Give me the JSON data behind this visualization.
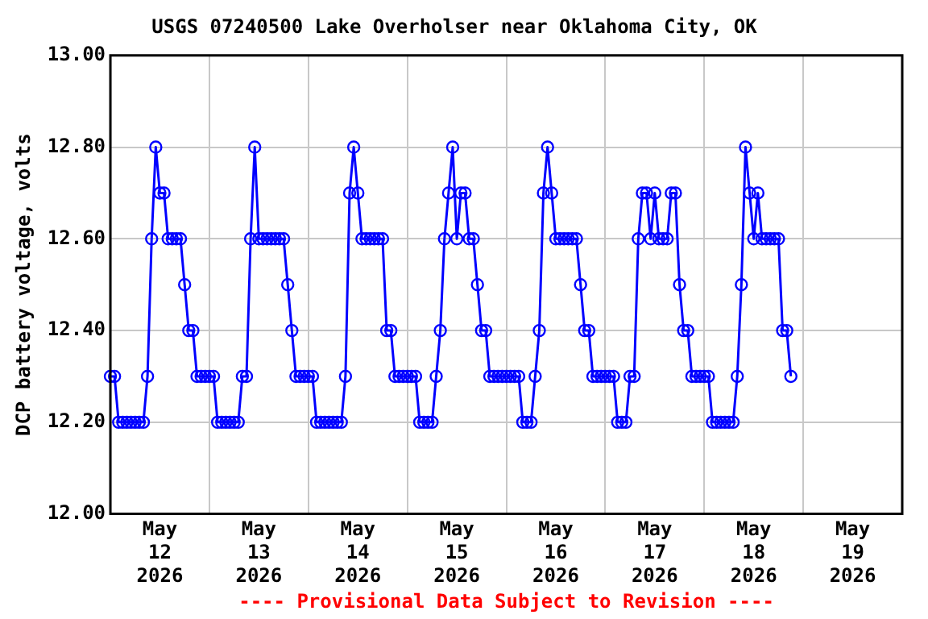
{
  "chart_data": {
    "type": "line",
    "title": "USGS 07240500 Lake Overholser near Oklahoma City, OK",
    "ylabel": "DCP battery voltage, volts",
    "annotations": [
      "---- Provisional Data Subject to Revision ----"
    ],
    "xlim": [
      "2026-05-12",
      "2026-05-20"
    ],
    "xticks": [
      {
        "value": "2026-05-12T12:00",
        "label": "May 12 2026"
      },
      {
        "value": "2026-05-13",
        "label": null
      },
      {
        "value": "2026-05-13T12:00",
        "label": "May 13 2026"
      },
      {
        "value": "2026-05-14",
        "label": null
      },
      {
        "value": "2026-05-14T12:00",
        "label": "May 14 2026"
      },
      {
        "value": "2026-05-15",
        "label": null
      },
      {
        "value": "2026-05-15T12:00",
        "label": "May 15 2026"
      },
      {
        "value": "2026-05-16",
        "label": null
      },
      {
        "value": "2026-05-16T12:00",
        "label": "May 16 2026"
      },
      {
        "value": "2026-05-17",
        "label": null
      },
      {
        "value": "2026-05-17T12:00",
        "label": "May 17 2026"
      },
      {
        "value": "2026-05-18",
        "label": null
      },
      {
        "value": "2026-05-18T12:00",
        "label": "May 18 2026"
      },
      {
        "value": "2026-05-19",
        "label": null
      },
      {
        "value": "2026-05-19T12:00",
        "label": "May 19 2026"
      }
    ],
    "ylim": [
      12,
      13
    ],
    "yticks": [
      {
        "value": 12,
        "label": "12.00"
      },
      {
        "value": 12.2,
        "label": "12.20"
      },
      {
        "value": 12.4,
        "label": "12.40"
      },
      {
        "value": 12.6,
        "label": "12.60"
      },
      {
        "value": 12.8,
        "label": "12.80"
      },
      {
        "value": 13,
        "label": "13.00"
      }
    ],
    "grid": true,
    "legend": false,
    "marker": "circle",
    "line_style": "solid",
    "series": [
      {
        "color": "#0000ff",
        "x": [
          "2026-05-12T00:00",
          "2026-05-12T01:00",
          "2026-05-12T02:00",
          "2026-05-12T03:00",
          "2026-05-12T04:00",
          "2026-05-12T05:00",
          "2026-05-12T06:00",
          "2026-05-12T07:00",
          "2026-05-12T08:00",
          "2026-05-12T09:00",
          "2026-05-12T10:00",
          "2026-05-12T11:00",
          "2026-05-12T12:00",
          "2026-05-12T13:00",
          "2026-05-12T14:00",
          "2026-05-12T15:00",
          "2026-05-12T16:00",
          "2026-05-12T17:00",
          "2026-05-12T18:00",
          "2026-05-12T19:00",
          "2026-05-12T20:00",
          "2026-05-12T21:00",
          "2026-05-12T22:00",
          "2026-05-12T23:00",
          "2026-05-13T00:00",
          "2026-05-13T01:00",
          "2026-05-13T02:00",
          "2026-05-13T03:00",
          "2026-05-13T04:00",
          "2026-05-13T05:00",
          "2026-05-13T06:00",
          "2026-05-13T07:00",
          "2026-05-13T08:00",
          "2026-05-13T09:00",
          "2026-05-13T10:00",
          "2026-05-13T11:00",
          "2026-05-13T12:00",
          "2026-05-13T13:00",
          "2026-05-13T14:00",
          "2026-05-13T15:00",
          "2026-05-13T16:00",
          "2026-05-13T17:00",
          "2026-05-13T18:00",
          "2026-05-13T19:00",
          "2026-05-13T20:00",
          "2026-05-13T21:00",
          "2026-05-13T22:00",
          "2026-05-13T23:00",
          "2026-05-14T00:00",
          "2026-05-14T01:00",
          "2026-05-14T02:00",
          "2026-05-14T03:00",
          "2026-05-14T04:00",
          "2026-05-14T05:00",
          "2026-05-14T06:00",
          "2026-05-14T07:00",
          "2026-05-14T08:00",
          "2026-05-14T09:00",
          "2026-05-14T10:00",
          "2026-05-14T11:00",
          "2026-05-14T12:00",
          "2026-05-14T13:00",
          "2026-05-14T14:00",
          "2026-05-14T15:00",
          "2026-05-14T16:00",
          "2026-05-14T17:00",
          "2026-05-14T18:00",
          "2026-05-14T19:00",
          "2026-05-14T20:00",
          "2026-05-14T21:00",
          "2026-05-14T22:00",
          "2026-05-14T23:00",
          "2026-05-15T00:00",
          "2026-05-15T01:00",
          "2026-05-15T02:00",
          "2026-05-15T03:00",
          "2026-05-15T04:00",
          "2026-05-15T05:00",
          "2026-05-15T06:00",
          "2026-05-15T07:00",
          "2026-05-15T08:00",
          "2026-05-15T09:00",
          "2026-05-15T10:00",
          "2026-05-15T11:00",
          "2026-05-15T12:00",
          "2026-05-15T13:00",
          "2026-05-15T14:00",
          "2026-05-15T15:00",
          "2026-05-15T16:00",
          "2026-05-15T17:00",
          "2026-05-15T18:00",
          "2026-05-15T19:00",
          "2026-05-15T20:00",
          "2026-05-15T21:00",
          "2026-05-15T22:00",
          "2026-05-15T23:00",
          "2026-05-16T00:00",
          "2026-05-16T01:00",
          "2026-05-16T02:00",
          "2026-05-16T03:00",
          "2026-05-16T04:00",
          "2026-05-16T05:00",
          "2026-05-16T06:00",
          "2026-05-16T07:00",
          "2026-05-16T08:00",
          "2026-05-16T09:00",
          "2026-05-16T10:00",
          "2026-05-16T11:00",
          "2026-05-16T12:00",
          "2026-05-16T13:00",
          "2026-05-16T14:00",
          "2026-05-16T15:00",
          "2026-05-16T16:00",
          "2026-05-16T17:00",
          "2026-05-16T18:00",
          "2026-05-16T19:00",
          "2026-05-16T20:00",
          "2026-05-16T21:00",
          "2026-05-16T22:00",
          "2026-05-16T23:00",
          "2026-05-17T00:00",
          "2026-05-17T01:00",
          "2026-05-17T02:00",
          "2026-05-17T03:00",
          "2026-05-17T04:00",
          "2026-05-17T05:00",
          "2026-05-17T06:00",
          "2026-05-17T07:00",
          "2026-05-17T08:00",
          "2026-05-17T09:00",
          "2026-05-17T10:00",
          "2026-05-17T11:00",
          "2026-05-17T12:00",
          "2026-05-17T13:00",
          "2026-05-17T14:00",
          "2026-05-17T15:00",
          "2026-05-17T16:00",
          "2026-05-17T17:00",
          "2026-05-17T18:00",
          "2026-05-17T19:00",
          "2026-05-17T20:00",
          "2026-05-17T21:00",
          "2026-05-17T22:00",
          "2026-05-17T23:00",
          "2026-05-18T00:00",
          "2026-05-18T01:00",
          "2026-05-18T02:00",
          "2026-05-18T03:00",
          "2026-05-18T04:00",
          "2026-05-18T05:00",
          "2026-05-18T06:00",
          "2026-05-18T07:00",
          "2026-05-18T08:00",
          "2026-05-18T09:00",
          "2026-05-18T10:00",
          "2026-05-18T11:00",
          "2026-05-18T12:00",
          "2026-05-18T13:00",
          "2026-05-18T14:00",
          "2026-05-18T15:00",
          "2026-05-18T16:00",
          "2026-05-18T17:00",
          "2026-05-18T18:00",
          "2026-05-18T19:00",
          "2026-05-18T20:00",
          "2026-05-18T21:00"
        ],
        "values": [
          12.3,
          12.3,
          12.2,
          12.2,
          12.2,
          12.2,
          12.2,
          12.2,
          12.2,
          12.3,
          12.6,
          12.8,
          12.7,
          12.7,
          12.6,
          12.6,
          12.6,
          12.6,
          12.5,
          12.4,
          12.4,
          12.3,
          12.3,
          12.3,
          12.3,
          12.3,
          12.2,
          12.2,
          12.2,
          12.2,
          12.2,
          12.2,
          12.3,
          12.3,
          12.6,
          12.8,
          12.6,
          12.6,
          12.6,
          12.6,
          12.6,
          12.6,
          12.6,
          12.5,
          12.4,
          12.3,
          12.3,
          12.3,
          12.3,
          12.3,
          12.2,
          12.2,
          12.2,
          12.2,
          12.2,
          12.2,
          12.2,
          12.3,
          12.7,
          12.8,
          12.7,
          12.6,
          12.6,
          12.6,
          12.6,
          12.6,
          12.6,
          12.4,
          12.4,
          12.3,
          12.3,
          12.3,
          12.3,
          12.3,
          12.3,
          12.2,
          12.2,
          12.2,
          12.2,
          12.3,
          12.4,
          12.6,
          12.7,
          12.8,
          12.6,
          12.7,
          12.7,
          12.6,
          12.6,
          12.5,
          12.4,
          12.4,
          12.3,
          12.3,
          12.3,
          12.3,
          12.3,
          12.3,
          12.3,
          12.3,
          12.2,
          12.2,
          12.2,
          12.3,
          12.4,
          12.7,
          12.8,
          12.7,
          12.6,
          12.6,
          12.6,
          12.6,
          12.6,
          12.6,
          12.5,
          12.4,
          12.4,
          12.3,
          12.3,
          12.3,
          12.3,
          12.3,
          12.3,
          12.2,
          12.2,
          12.2,
          12.3,
          12.3,
          12.6,
          12.7,
          12.7,
          12.6,
          12.7,
          12.6,
          12.6,
          12.6,
          12.7,
          12.7,
          12.5,
          12.4,
          12.4,
          12.3,
          12.3,
          12.3,
          12.3,
          12.3,
          12.2,
          12.2,
          12.2,
          12.2,
          12.2,
          12.2,
          12.3,
          12.5,
          12.8,
          12.7,
          12.6,
          12.7,
          12.6,
          12.6,
          12.6,
          12.6,
          12.6,
          12.4,
          12.4,
          12.3
        ]
      }
    ]
  }
}
